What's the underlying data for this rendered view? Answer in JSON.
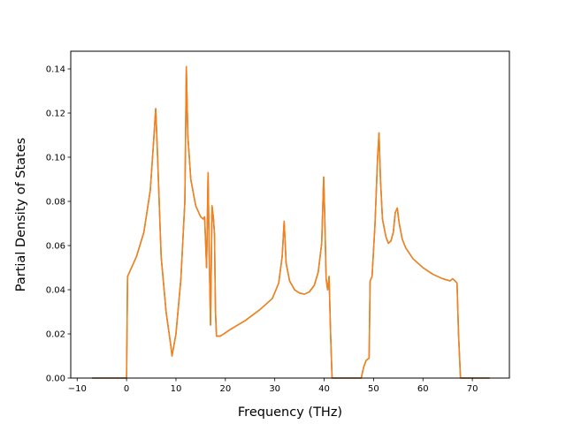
{
  "chart_data": {
    "type": "line",
    "title": "",
    "xlabel": "Frequency (THz)",
    "ylabel": "Partial Density of States",
    "xlim": [
      -11.3,
      77.5
    ],
    "ylim": [
      0.0,
      0.148
    ],
    "xticks": [
      -10,
      0,
      10,
      20,
      30,
      40,
      50,
      60,
      70
    ],
    "xtick_labels": [
      "−10",
      "0",
      "10",
      "20",
      "30",
      "40",
      "50",
      "60",
      "70"
    ],
    "yticks": [
      0.0,
      0.02,
      0.04,
      0.06,
      0.08,
      0.1,
      0.12,
      0.14
    ],
    "ytick_labels": [
      "0.00",
      "0.02",
      "0.04",
      "0.06",
      "0.08",
      "0.10",
      "0.12",
      "0.14"
    ],
    "grid": false,
    "legend": "none",
    "colors": {
      "series_a": "#1f77b4",
      "series_b": "#ff7f0e"
    },
    "series": [
      {
        "color": "#1f77b4",
        "x": [
          -7.0,
          -0.3,
          0.0,
          0.2,
          2.0,
          3.5,
          4.8,
          5.5,
          5.9,
          6.2,
          7.0,
          8.0,
          9.0,
          9.2,
          10.0,
          11.0,
          11.8,
          12.1,
          12.4,
          13.0,
          14.0,
          15.0,
          15.5,
          15.8,
          16.2,
          16.5,
          16.7,
          17.0,
          17.3,
          17.6,
          17.8,
          18.0,
          18.2,
          19.0,
          21.0,
          24.0,
          27.0,
          29.5,
          30.8,
          31.5,
          31.9,
          32.3,
          33.0,
          34.0,
          35.0,
          36.0,
          37.0,
          38.0,
          38.8,
          39.5,
          39.9,
          40.1,
          40.4,
          40.7,
          41.0,
          41.3,
          41.6,
          42.0,
          46.0,
          47.5,
          48.0,
          48.5,
          49.1,
          49.3,
          49.7,
          50.3,
          50.8,
          51.1,
          51.4,
          51.8,
          52.5,
          53.0,
          53.5,
          54.0,
          54.4,
          54.8,
          55.2,
          55.8,
          56.5,
          58.0,
          60.0,
          62.0,
          64.0,
          65.5,
          66.0,
          66.5,
          66.9,
          67.2,
          67.6,
          73.5
        ],
        "y": [
          0.0,
          0.0,
          0.0,
          0.046,
          0.055,
          0.066,
          0.085,
          0.108,
          0.122,
          0.105,
          0.055,
          0.03,
          0.014,
          0.01,
          0.02,
          0.045,
          0.08,
          0.141,
          0.11,
          0.09,
          0.078,
          0.073,
          0.072,
          0.073,
          0.05,
          0.093,
          0.06,
          0.024,
          0.078,
          0.072,
          0.065,
          0.03,
          0.019,
          0.019,
          0.022,
          0.026,
          0.031,
          0.036,
          0.043,
          0.055,
          0.071,
          0.052,
          0.044,
          0.04,
          0.0385,
          0.038,
          0.039,
          0.042,
          0.048,
          0.061,
          0.091,
          0.075,
          0.045,
          0.04,
          0.046,
          0.02,
          0.0,
          0.0,
          0.0,
          0.0,
          0.005,
          0.008,
          0.009,
          0.044,
          0.046,
          0.07,
          0.099,
          0.111,
          0.09,
          0.072,
          0.064,
          0.061,
          0.062,
          0.066,
          0.075,
          0.077,
          0.07,
          0.063,
          0.059,
          0.054,
          0.05,
          0.047,
          0.045,
          0.044,
          0.045,
          0.044,
          0.043,
          0.02,
          0.0,
          0.0
        ]
      },
      {
        "color": "#ff7f0e",
        "x": [
          -7.0,
          -0.3,
          0.0,
          0.2,
          2.0,
          3.5,
          4.8,
          5.5,
          5.9,
          6.2,
          7.0,
          8.0,
          9.0,
          9.2,
          10.0,
          11.0,
          11.8,
          12.1,
          12.4,
          13.0,
          14.0,
          15.0,
          15.5,
          15.8,
          16.2,
          16.5,
          16.7,
          17.0,
          17.3,
          17.6,
          17.8,
          18.0,
          18.2,
          19.0,
          21.0,
          24.0,
          27.0,
          29.5,
          30.8,
          31.5,
          31.9,
          32.3,
          33.0,
          34.0,
          35.0,
          36.0,
          37.0,
          38.0,
          38.8,
          39.5,
          39.9,
          40.1,
          40.4,
          40.7,
          41.0,
          41.3,
          41.6,
          42.0,
          46.0,
          47.5,
          48.0,
          48.5,
          49.1,
          49.3,
          49.7,
          50.3,
          50.8,
          51.1,
          51.4,
          51.8,
          52.5,
          53.0,
          53.5,
          54.0,
          54.4,
          54.8,
          55.2,
          55.8,
          56.5,
          58.0,
          60.0,
          62.0,
          64.0,
          65.5,
          66.0,
          66.5,
          66.9,
          67.2,
          67.6,
          73.5
        ],
        "y": [
          0.0,
          0.0,
          0.0,
          0.046,
          0.055,
          0.066,
          0.085,
          0.108,
          0.122,
          0.105,
          0.055,
          0.03,
          0.014,
          0.01,
          0.02,
          0.045,
          0.08,
          0.141,
          0.11,
          0.09,
          0.078,
          0.073,
          0.072,
          0.073,
          0.05,
          0.093,
          0.06,
          0.024,
          0.078,
          0.072,
          0.065,
          0.03,
          0.019,
          0.019,
          0.022,
          0.026,
          0.031,
          0.036,
          0.043,
          0.055,
          0.071,
          0.052,
          0.044,
          0.04,
          0.0385,
          0.038,
          0.039,
          0.042,
          0.048,
          0.061,
          0.091,
          0.075,
          0.045,
          0.04,
          0.046,
          0.02,
          0.0,
          0.0,
          0.0,
          0.0,
          0.005,
          0.008,
          0.009,
          0.044,
          0.046,
          0.07,
          0.099,
          0.111,
          0.09,
          0.072,
          0.064,
          0.061,
          0.062,
          0.066,
          0.075,
          0.077,
          0.07,
          0.063,
          0.059,
          0.054,
          0.05,
          0.047,
          0.045,
          0.044,
          0.045,
          0.044,
          0.043,
          0.02,
          0.0,
          0.0
        ]
      }
    ]
  }
}
